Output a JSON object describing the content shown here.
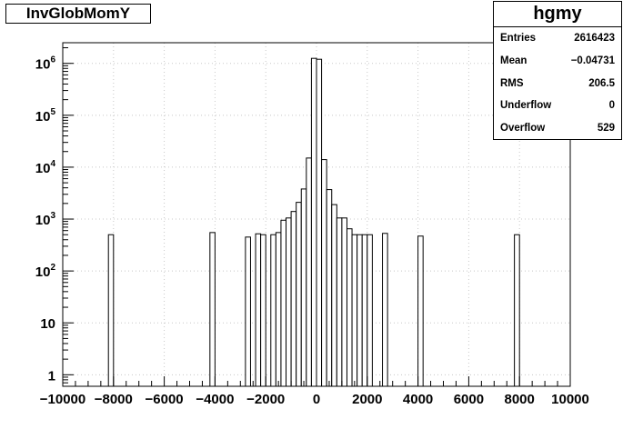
{
  "chart_data": {
    "type": "bar",
    "title": "InvGlobMomY",
    "xlabel": "",
    "ylabel": "",
    "xlim": [
      -10000,
      10000
    ],
    "ylim": [
      0.6,
      2500000
    ],
    "log_y": true,
    "grid": true,
    "bin_width": 200,
    "x_ticks": [
      -10000,
      -8000,
      -6000,
      -4000,
      -2000,
      0,
      2000,
      4000,
      6000,
      8000,
      10000
    ],
    "x_tick_labels": [
      "−10000",
      "−8000",
      "−6000",
      "−4000",
      "−2000",
      "0",
      "2000",
      "4000",
      "6000",
      "8000",
      "10000"
    ],
    "y_ticks": [
      {
        "value": 1,
        "base": "1",
        "exp": ""
      },
      {
        "value": 10,
        "base": "10",
        "exp": ""
      },
      {
        "value": 100,
        "base": "10",
        "exp": "2"
      },
      {
        "value": 1000,
        "base": "10",
        "exp": "3"
      },
      {
        "value": 10000,
        "base": "10",
        "exp": "4"
      },
      {
        "value": 100000,
        "base": "10",
        "exp": "5"
      },
      {
        "value": 1000000,
        "base": "10",
        "exp": "6"
      }
    ],
    "bins": [
      {
        "x0": -8200,
        "x1": -8000,
        "count": 500
      },
      {
        "x0": -4200,
        "x1": -4000,
        "count": 550
      },
      {
        "x0": -2800,
        "x1": -2600,
        "count": 450
      },
      {
        "x0": -2400,
        "x1": -2200,
        "count": 520
      },
      {
        "x0": -2200,
        "x1": -2000,
        "count": 500
      },
      {
        "x0": -1800,
        "x1": -1600,
        "count": 500
      },
      {
        "x0": -1600,
        "x1": -1400,
        "count": 550
      },
      {
        "x0": -1400,
        "x1": -1200,
        "count": 950
      },
      {
        "x0": -1200,
        "x1": -1000,
        "count": 1050
      },
      {
        "x0": -1000,
        "x1": -800,
        "count": 1400
      },
      {
        "x0": -800,
        "x1": -600,
        "count": 2100
      },
      {
        "x0": -600,
        "x1": -400,
        "count": 3800
      },
      {
        "x0": -400,
        "x1": -200,
        "count": 15000
      },
      {
        "x0": -200,
        "x1": 0,
        "count": 1250000
      },
      {
        "x0": 0,
        "x1": 200,
        "count": 1200000
      },
      {
        "x0": 200,
        "x1": 400,
        "count": 14000
      },
      {
        "x0": 400,
        "x1": 600,
        "count": 3700
      },
      {
        "x0": 600,
        "x1": 800,
        "count": 1900
      },
      {
        "x0": 800,
        "x1": 1000,
        "count": 1050
      },
      {
        "x0": 1000,
        "x1": 1200,
        "count": 1050
      },
      {
        "x0": 1200,
        "x1": 1400,
        "count": 650
      },
      {
        "x0": 1400,
        "x1": 1600,
        "count": 500
      },
      {
        "x0": 1600,
        "x1": 1800,
        "count": 500
      },
      {
        "x0": 1800,
        "x1": 2000,
        "count": 500
      },
      {
        "x0": 2000,
        "x1": 2200,
        "count": 500
      },
      {
        "x0": 2600,
        "x1": 2800,
        "count": 530
      },
      {
        "x0": 4000,
        "x1": 4200,
        "count": 470
      },
      {
        "x0": 7800,
        "x1": 8000,
        "count": 500
      }
    ],
    "stats": {
      "name": "hgmy",
      "rows": [
        {
          "label": "Entries",
          "value": "2616423"
        },
        {
          "label": "Mean",
          "value": "−0.04731"
        },
        {
          "label": "RMS",
          "value": "206.5"
        },
        {
          "label": "Underflow",
          "value": "0"
        },
        {
          "label": "Overflow",
          "value": "529"
        }
      ]
    },
    "legend_position": "top-right",
    "line_color": "#000000",
    "grid_color": "#c8c8c8"
  }
}
